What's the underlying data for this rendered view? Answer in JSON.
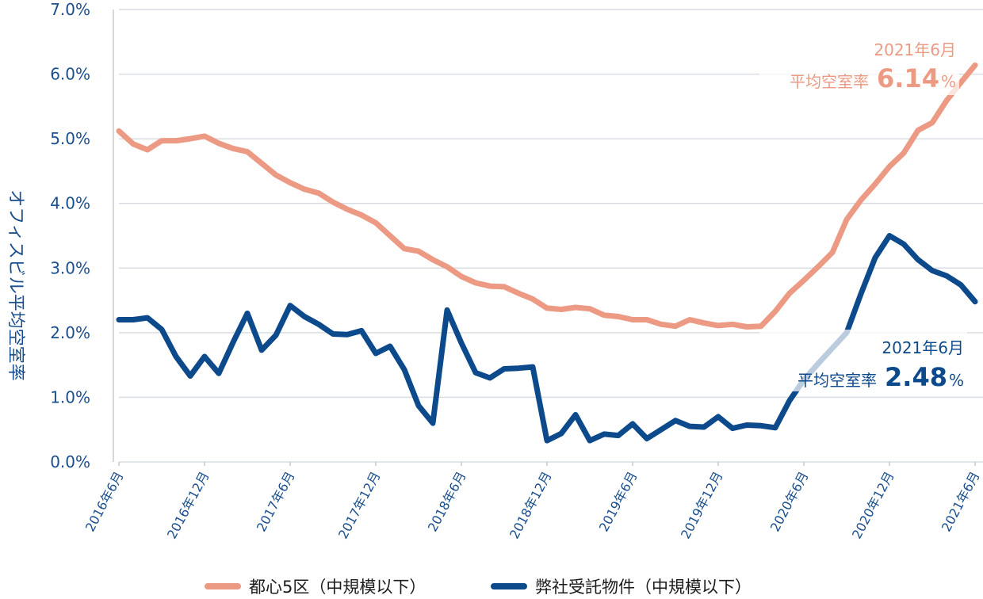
{
  "chart_data": {
    "type": "line",
    "title": "",
    "xlabel": "",
    "ylabel": "オフィスビル平均空室率",
    "ylim": [
      0,
      7
    ],
    "yticks": [
      "0.0%",
      "1.0%",
      "2.0%",
      "3.0%",
      "4.0%",
      "5.0%",
      "6.0%",
      "7.0%"
    ],
    "grid": true,
    "legend_position": "bottom",
    "x_tick_labels": [
      "2016年6月",
      "2016年12月",
      "2017年6月",
      "2017年12月",
      "2018年6月",
      "2018年12月",
      "2019年6月",
      "2019年12月",
      "2020年6月",
      "2020年12月",
      "2021年6月"
    ],
    "series": [
      {
        "name": "都心5区（中規模以下）",
        "color": "#ec9a83",
        "values": [
          5.12,
          4.92,
          4.83,
          4.97,
          4.97,
          5.0,
          5.04,
          4.93,
          4.85,
          4.8,
          4.62,
          4.44,
          4.32,
          4.22,
          4.16,
          4.02,
          3.91,
          3.82,
          3.7,
          3.5,
          3.3,
          3.26,
          3.13,
          3.02,
          2.87,
          2.77,
          2.72,
          2.71,
          2.61,
          2.52,
          2.38,
          2.36,
          2.39,
          2.37,
          2.27,
          2.25,
          2.2,
          2.2,
          2.13,
          2.1,
          2.2,
          2.15,
          2.11,
          2.13,
          2.09,
          2.1,
          2.33,
          2.61,
          2.81,
          3.02,
          3.24,
          3.75,
          4.05,
          4.3,
          4.57,
          4.78,
          5.13,
          5.25,
          5.59,
          5.87,
          6.14
        ]
      },
      {
        "name": "弊社受託物件（中規模以下）",
        "color": "#0d4a8c",
        "values": [
          2.2,
          2.2,
          2.23,
          2.05,
          1.63,
          1.33,
          1.63,
          1.37,
          1.85,
          2.3,
          1.73,
          1.96,
          2.42,
          2.25,
          2.13,
          1.98,
          1.97,
          2.03,
          1.68,
          1.79,
          1.43,
          0.87,
          0.6,
          2.35,
          1.84,
          1.38,
          1.3,
          1.44,
          1.45,
          1.47,
          0.33,
          0.44,
          0.73,
          0.33,
          0.43,
          0.41,
          0.59,
          0.36,
          0.5,
          0.64,
          0.55,
          0.54,
          0.7,
          0.52,
          0.57,
          0.56,
          0.53,
          0.95,
          1.27,
          1.52,
          1.76,
          2.0,
          2.6,
          3.16,
          3.5,
          3.37,
          3.13,
          2.96,
          2.88,
          2.74,
          2.48
        ]
      }
    ],
    "annotations": [
      {
        "series": 0,
        "date": "2021年6月",
        "label": "平均空室率",
        "value": "6.14",
        "unit": "%"
      },
      {
        "series": 1,
        "date": "2021年6月",
        "label": "平均空室率",
        "value": "2.48",
        "unit": "%"
      }
    ]
  }
}
